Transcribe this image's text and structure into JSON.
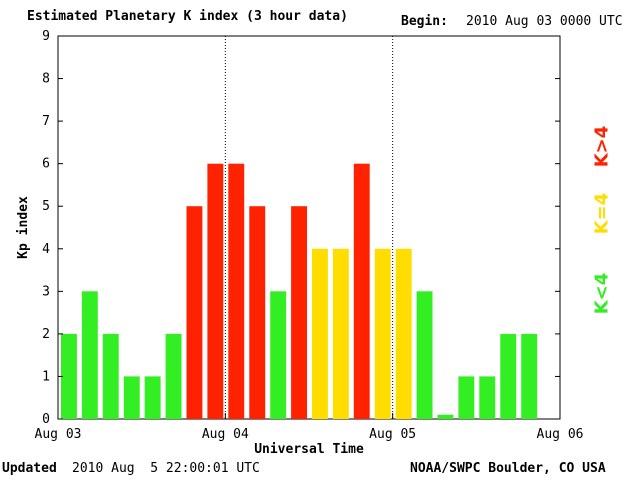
{
  "header": {
    "title": "Estimated Planetary K index (3 hour data)",
    "begin_label": "Begin:",
    "begin_value": "2010 Aug 03 0000 UTC"
  },
  "footer": {
    "updated_label": "Updated",
    "updated_value": "2010 Aug  5 22:00:01 UTC",
    "credit": "NOAA/SWPC Boulder, CO USA"
  },
  "legend": [
    {
      "label": "K<4",
      "color": "#33ee22"
    },
    {
      "label": "K=4",
      "color": "#ffdd00"
    },
    {
      "label": "K>4",
      "color": "#ff2200"
    }
  ],
  "chart_data": {
    "type": "bar",
    "xlabel": "Universal Time",
    "ylabel": "Kp index",
    "ylim": [
      0,
      9
    ],
    "yticks": [
      "0",
      "1",
      "2",
      "3",
      "4",
      "5",
      "6",
      "7",
      "8",
      "9"
    ],
    "xtick_labels": [
      "Aug 03",
      "Aug 04",
      "Aug 05",
      "Aug 06"
    ],
    "day_separators": [
      "Aug 04",
      "Aug 05"
    ],
    "bins_per_day": 8,
    "values": [
      2,
      3,
      2,
      1,
      1,
      2,
      5,
      6,
      6,
      5,
      3,
      5,
      4,
      4,
      6,
      4,
      4,
      3,
      0.1,
      1,
      1,
      2,
      2
    ],
    "colors": {
      "low": "#33ee22",
      "storm_threshold": "#ffdd00",
      "storm": "#ff2200"
    },
    "grid": false
  }
}
